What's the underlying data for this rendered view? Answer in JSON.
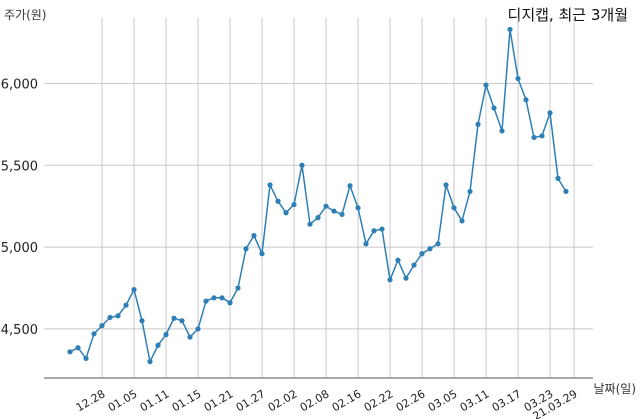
{
  "chart_data": {
    "type": "line",
    "title": "디지캡, 최근 3개월",
    "ylabel": "주가(원)",
    "xlabel": "날짜(일)",
    "ylim": [
      4200,
      6400
    ],
    "yticks": [
      4500,
      5000,
      5500,
      6000
    ],
    "ytick_labels": [
      "4,500",
      "5,000",
      "5,500",
      "6,000"
    ],
    "xticks": [
      {
        "index": 4,
        "label": "12.28"
      },
      {
        "index": 8,
        "label": "01.05"
      },
      {
        "index": 12,
        "label": "01.11"
      },
      {
        "index": 16,
        "label": "01.15"
      },
      {
        "index": 20,
        "label": "01.21"
      },
      {
        "index": 24,
        "label": "01.27"
      },
      {
        "index": 28,
        "label": "02.02"
      },
      {
        "index": 32,
        "label": "02.08"
      },
      {
        "index": 36,
        "label": "02.16"
      },
      {
        "index": 40,
        "label": "02.22"
      },
      {
        "index": 44,
        "label": "02.26"
      },
      {
        "index": 48,
        "label": "03.05"
      },
      {
        "index": 52,
        "label": "03.11"
      },
      {
        "index": 56,
        "label": "03.17"
      },
      {
        "index": 60,
        "label": "03.23"
      },
      {
        "index": 63,
        "label": "21.03.29"
      }
    ],
    "grid": true,
    "color": "#2e7fb5",
    "values": [
      4360,
      4385,
      4320,
      4470,
      4520,
      4570,
      4580,
      4645,
      4740,
      4550,
      4300,
      4400,
      4465,
      4565,
      4550,
      4450,
      4500,
      4670,
      4690,
      4690,
      4660,
      4750,
      4990,
      5070,
      4960,
      5380,
      5280,
      5210,
      5260,
      5500,
      5140,
      5180,
      5250,
      5220,
      5200,
      5375,
      5240,
      5020,
      5100,
      5110,
      4800,
      4920,
      4810,
      4890,
      4960,
      4990,
      5020,
      5380,
      5240,
      5160,
      5340,
      5750,
      5990,
      5850,
      5710,
      6330,
      6030,
      5900,
      5670,
      5680,
      5820,
      5420,
      5340
    ]
  }
}
